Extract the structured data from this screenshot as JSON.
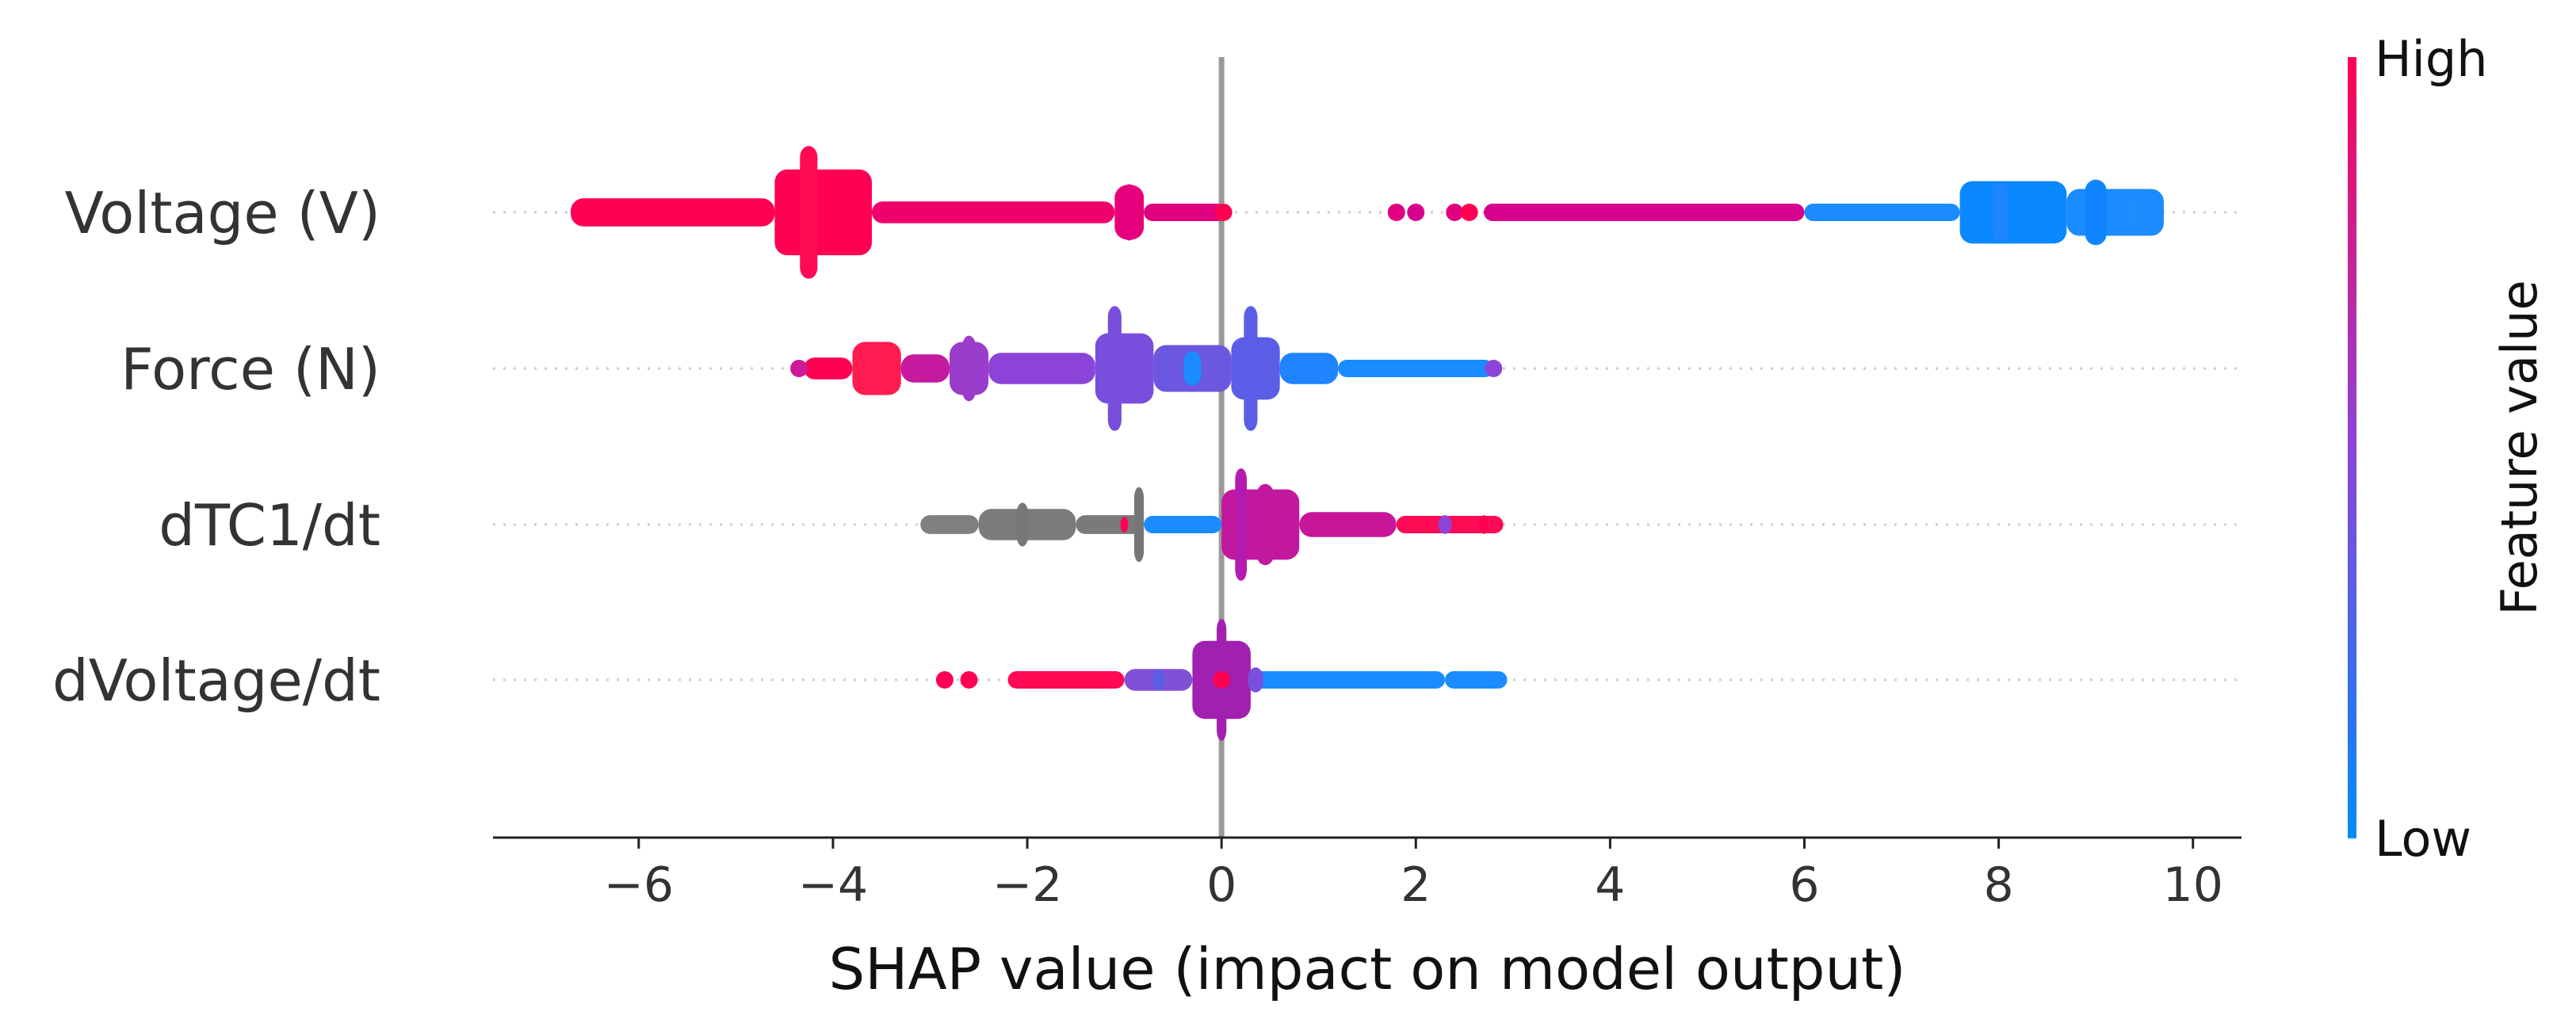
{
  "chart_data": {
    "type": "scatter",
    "subtype": "shap-beeswarm",
    "xlabel": "SHAP value (impact on model output)",
    "xlim": [
      -7.5,
      10.5
    ],
    "x_ticks": [
      -6,
      -4,
      -2,
      0,
      2,
      4,
      6,
      8,
      10
    ],
    "x_tick_labels": [
      "−6",
      "−4",
      "−2",
      "0",
      "2",
      "4",
      "6",
      "8",
      "10"
    ],
    "zero_line": 0,
    "features": [
      {
        "name": "Voltage (V)",
        "segments": [
          {
            "from": -6.7,
            "to": -4.6,
            "color": "#ff0052",
            "width": 0.18
          },
          {
            "from": -4.6,
            "to": -3.6,
            "color": "#ff0052",
            "width": 0.55
          },
          {
            "from": -3.6,
            "to": -1.1,
            "color": "#f0006a",
            "width": 0.14
          },
          {
            "from": -1.1,
            "to": -0.8,
            "color": "#e8007a",
            "width": 0.35
          },
          {
            "from": -0.8,
            "to": 0.05,
            "color": "#e0007f",
            "width": 0.08
          },
          {
            "from": 2.7,
            "to": 6.0,
            "color": "#d6008c",
            "width": 0.08
          },
          {
            "from": 6.0,
            "to": 7.6,
            "color": "#1a8cff",
            "width": 0.1
          },
          {
            "from": 7.6,
            "to": 8.7,
            "color": "#0a88ff",
            "width": 0.4
          },
          {
            "from": 8.7,
            "to": 9.7,
            "color": "#1a8cff",
            "width": 0.3
          }
        ],
        "blobs": [
          {
            "x": -4.25,
            "color": "#ff0a55",
            "height": 0.85,
            "width": 0.18
          },
          {
            "x": -0.95,
            "color": "#e5007d",
            "height": 0.36,
            "width": 0.16
          },
          {
            "x": 8.02,
            "color": "#1e86ff",
            "height": 0.38,
            "width": 0.16
          },
          {
            "x": 9.0,
            "color": "#0f86ff",
            "height": 0.42,
            "width": 0.22
          },
          {
            "x": 9.4,
            "color": "#1e8cff",
            "height": 0.25,
            "width": 0.12
          }
        ],
        "points": [
          {
            "x": 0.02,
            "color": "#ff0052"
          },
          {
            "x": 1.8,
            "color": "#e0007f"
          },
          {
            "x": 2.0,
            "color": "#d6008c"
          },
          {
            "x": 2.4,
            "color": "#e0007f"
          },
          {
            "x": 2.55,
            "color": "#ff0052"
          }
        ]
      },
      {
        "name": "Force (N)",
        "segments": [
          {
            "from": -4.3,
            "to": -3.8,
            "color": "#ff0052",
            "width": 0.14
          },
          {
            "from": -3.8,
            "to": -3.3,
            "color": "#ff1a50",
            "width": 0.34
          },
          {
            "from": -3.3,
            "to": -2.8,
            "color": "#c61aa0",
            "width": 0.18
          },
          {
            "from": -2.8,
            "to": -2.4,
            "color": "#9a3ccc",
            "width": 0.34
          },
          {
            "from": -2.4,
            "to": -1.3,
            "color": "#8c44d8",
            "width": 0.2
          },
          {
            "from": -1.3,
            "to": -0.7,
            "color": "#7a4edc",
            "width": 0.45
          },
          {
            "from": -0.7,
            "to": 0.1,
            "color": "#6c58e0",
            "width": 0.3
          },
          {
            "from": 0.1,
            "to": 0.6,
            "color": "#5a5ee6",
            "width": 0.4
          },
          {
            "from": 0.6,
            "to": 1.2,
            "color": "#1f84ff",
            "width": 0.2
          },
          {
            "from": 1.2,
            "to": 2.8,
            "color": "#1a8cff",
            "width": 0.1
          }
        ],
        "blobs": [
          {
            "x": -3.55,
            "color": "#ff1a55",
            "height": 0.34,
            "width": 0.12
          },
          {
            "x": -2.6,
            "color": "#9a3ccc",
            "height": 0.42,
            "width": 0.14
          },
          {
            "x": -1.1,
            "color": "#7a4edc",
            "height": 0.8,
            "width": 0.14
          },
          {
            "x": -0.3,
            "color": "#1a8cff",
            "height": 0.22,
            "width": 0.18
          },
          {
            "x": 0.3,
            "color": "#5a5ee6",
            "height": 0.8,
            "width": 0.14
          }
        ],
        "points": [
          {
            "x": -4.35,
            "color": "#cc1a9a"
          },
          {
            "x": -4.1,
            "color": "#ff0052"
          },
          {
            "x": 2.8,
            "color": "#8c44d8"
          }
        ]
      },
      {
        "name": "dTC1/dt",
        "segments": [
          {
            "from": -3.1,
            "to": -2.5,
            "color": "#808080",
            "width": 0.12
          },
          {
            "from": -2.5,
            "to": -1.5,
            "color": "#7c7c7c",
            "width": 0.2
          },
          {
            "from": -1.5,
            "to": -0.8,
            "color": "#7a7a7a",
            "width": 0.12
          },
          {
            "from": -0.8,
            "to": 0.0,
            "color": "#1a8cff",
            "width": 0.08
          },
          {
            "from": 0.0,
            "to": 0.8,
            "color": "#c2189e",
            "width": 0.45
          },
          {
            "from": 0.8,
            "to": 1.8,
            "color": "#c8169a",
            "width": 0.16
          },
          {
            "from": 1.8,
            "to": 2.9,
            "color": "#ff0a55",
            "width": 0.1
          }
        ],
        "blobs": [
          {
            "x": -2.05,
            "color": "#777777",
            "height": 0.28,
            "width": 0.12
          },
          {
            "x": -0.85,
            "color": "#777777",
            "height": 0.48,
            "width": 0.1
          },
          {
            "x": -1.0,
            "color": "#ff0052",
            "height": 0.1,
            "width": 0.08
          },
          {
            "x": 0.2,
            "color": "#b51ab0",
            "height": 0.72,
            "width": 0.12
          },
          {
            "x": 0.45,
            "color": "#c2189e",
            "height": 0.52,
            "width": 0.18
          },
          {
            "x": 2.3,
            "color": "#8c44d8",
            "height": 0.12,
            "width": 0.14
          },
          {
            "x": 2.7,
            "color": "#ff0052",
            "height": 0.12,
            "width": 0.1
          }
        ],
        "points": []
      },
      {
        "name": "dVoltage/dt",
        "segments": [
          {
            "from": -2.2,
            "to": -1.0,
            "color": "#ff0a55",
            "width": 0.08
          },
          {
            "from": -1.0,
            "to": -0.3,
            "color": "#8050d8",
            "width": 0.14
          },
          {
            "from": -0.3,
            "to": 0.3,
            "color": "#a020b0",
            "width": 0.5
          },
          {
            "from": 0.3,
            "to": 2.3,
            "color": "#1a8cff",
            "width": 0.1
          },
          {
            "from": 2.3,
            "to": 2.9,
            "color": "#1a8cff",
            "width": 0.06
          }
        ],
        "blobs": [
          {
            "x": 0.0,
            "color": "#a020b0",
            "height": 0.78,
            "width": 0.1
          },
          {
            "x": -0.65,
            "color": "#5a5ee6",
            "height": 0.14,
            "width": 0.12
          },
          {
            "x": 0.35,
            "color": "#7a4edc",
            "height": 0.16,
            "width": 0.16
          }
        ],
        "points": [
          {
            "x": -2.85,
            "color": "#ff0052"
          },
          {
            "x": -2.6,
            "color": "#ff0052"
          },
          {
            "x": 0.0,
            "color": "#ff0052"
          },
          {
            "x": 2.65,
            "color": "#1a8cff"
          },
          {
            "x": 2.85,
            "color": "#1a8cff"
          }
        ]
      }
    ],
    "colorbar": {
      "label": "Feature value",
      "high_label": "High",
      "low_label": "Low",
      "high_color": "#ff0052",
      "mid_color": "#8c44d8",
      "low_color": "#008bfb"
    },
    "missing_value_color": "#777777",
    "zero_line_color": "#999999",
    "grid_color": "#cccccc"
  }
}
